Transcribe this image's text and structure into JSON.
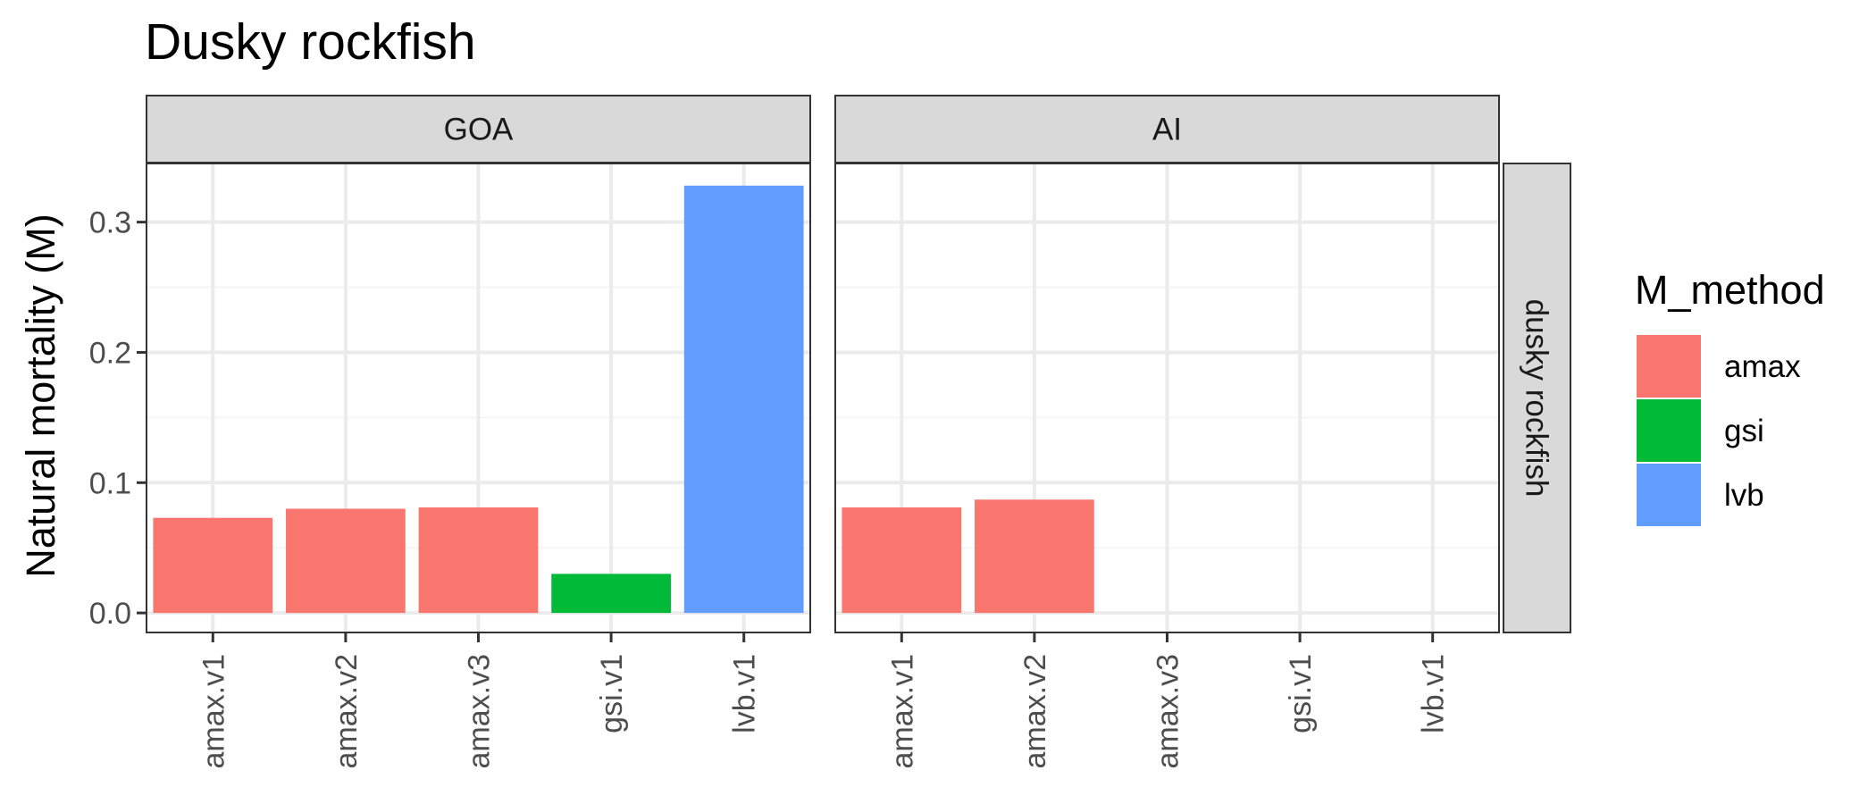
{
  "chart_data": {
    "type": "bar",
    "title": "Dusky rockfish",
    "ylabel": "Natural mortality (M)",
    "xlabel": "",
    "ylim": [
      -0.015,
      0.345
    ],
    "yticks": [
      0.0,
      0.1,
      0.2,
      0.3
    ],
    "ytick_labels": [
      "0.0",
      "0.1",
      "0.2",
      "0.3"
    ],
    "categories": [
      "amax.v1",
      "amax.v2",
      "amax.v3",
      "gsi.v1",
      "lvb.v1"
    ],
    "category_method": [
      "amax",
      "amax",
      "amax",
      "gsi",
      "lvb"
    ],
    "facet_column_labels": [
      "GOA",
      "AI"
    ],
    "facet_row_label": "dusky rockfish",
    "panels": [
      {
        "facet": "GOA",
        "values": [
          0.073,
          0.08,
          0.081,
          0.03,
          0.328
        ]
      },
      {
        "facet": "AI",
        "values": [
          0.081,
          0.087,
          null,
          null,
          null
        ]
      }
    ],
    "legend": {
      "title": "M_method",
      "position": "right",
      "entries": [
        {
          "label": "amax",
          "color": "#F8766D"
        },
        {
          "label": "gsi",
          "color": "#00BA38"
        },
        {
          "label": "lvb",
          "color": "#619CFF"
        }
      ]
    },
    "grid": true,
    "colors": {
      "panel_border": "#333333",
      "grid_major": "#EBEBEB",
      "grid_minor": "#F5F5F5",
      "strip_fill": "#D9D9D9"
    }
  }
}
